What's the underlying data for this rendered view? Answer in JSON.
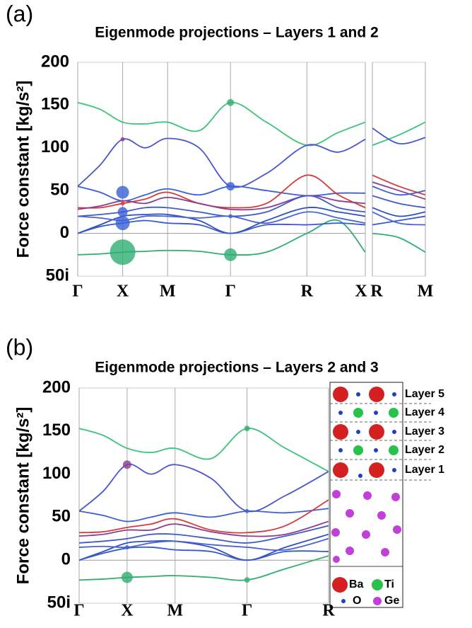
{
  "chart_data": [
    {
      "type": "line",
      "panel_label": "(a)",
      "title": "Eigenmode projections – Layers 1 and 2",
      "ylabel": "Force constant [kg/s²]",
      "x": [
        0,
        0.5,
        1,
        1.5,
        2,
        2.7,
        3.4,
        4.2,
        5.1,
        5.8,
        6.4
      ],
      "xlim": [
        0,
        6.4
      ],
      "ylim": [
        -50,
        200
      ],
      "xticks": [
        {
          "value": 0,
          "label": "Γ"
        },
        {
          "value": 1,
          "label": "X"
        },
        {
          "value": 2,
          "label": "M"
        },
        {
          "value": 3.4,
          "label": "Γ"
        },
        {
          "value": 5.1,
          "label": "R"
        },
        {
          "value": 6.4,
          "label": "X"
        }
      ],
      "yticks": [
        {
          "value": -50,
          "label": "50i"
        },
        0,
        50,
        100,
        150,
        200
      ],
      "series": [
        {
          "color": "#3cc47a",
          "values": [
            153,
            145,
            130,
            128,
            130,
            120,
            153,
            130,
            103,
            118,
            130
          ]
        },
        {
          "color": "#4b55d0",
          "values": [
            55,
            80,
            110,
            100,
            111,
            100,
            55,
            70,
            103,
            95,
            110
          ]
        },
        {
          "color": "#2fae72",
          "values": [
            -25,
            -24,
            -22,
            -21,
            -20,
            -21,
            -25,
            -22,
            0,
            15,
            -22
          ]
        },
        {
          "color": "#3a5fd6",
          "values": [
            55,
            48,
            38,
            45,
            52,
            45,
            55,
            50,
            44,
            47,
            47
          ]
        },
        {
          "color": "#d83a3a",
          "values": [
            30,
            30,
            35,
            40,
            48,
            35,
            30,
            35,
            68,
            45,
            30
          ]
        },
        {
          "color": "#8a3f8f",
          "values": [
            28,
            32,
            38,
            35,
            42,
            35,
            28,
            30,
            44,
            38,
            35
          ]
        },
        {
          "color": "#3f5bc9",
          "values": [
            20,
            22,
            25,
            30,
            30,
            25,
            20,
            25,
            44,
            30,
            25
          ]
        },
        {
          "color": "#2f4fc4",
          "values": [
            0,
            10,
            20,
            22,
            22,
            15,
            0,
            15,
            30,
            25,
            20
          ]
        },
        {
          "color": "#3659cc",
          "values": [
            0,
            8,
            12,
            15,
            12,
            10,
            0,
            10,
            10,
            12,
            10
          ]
        },
        {
          "color": "#4a64d2",
          "values": [
            20,
            18,
            15,
            20,
            20,
            18,
            20,
            12,
            25,
            18,
            12
          ]
        }
      ],
      "markers": [
        {
          "x": 1,
          "y": -22,
          "size": 18,
          "color": "#2fae72"
        },
        {
          "x": 1,
          "y": 12,
          "size": 10,
          "color": "#3a5fd6"
        },
        {
          "x": 1,
          "y": 25,
          "size": 7,
          "color": "#3a5fd6"
        },
        {
          "x": 1,
          "y": 48,
          "size": 9,
          "color": "#3a5fd6"
        },
        {
          "x": 1,
          "y": 35,
          "size": 3,
          "color": "#d83a3a"
        },
        {
          "x": 1,
          "y": 110,
          "size": 3,
          "color": "#8a3f8f"
        },
        {
          "x": 3.4,
          "y": 153,
          "size": 5,
          "color": "#2fae72"
        },
        {
          "x": 3.4,
          "y": 55,
          "size": 6,
          "color": "#3a5fd6"
        },
        {
          "x": 3.4,
          "y": 20,
          "size": 3,
          "color": "#3a5fd6"
        },
        {
          "x": 3.4,
          "y": -25,
          "size": 9,
          "color": "#2fae72"
        }
      ]
    },
    {
      "type": "line",
      "x": [
        0,
        0.55,
        1.1
      ],
      "xlim": [
        0,
        1.1
      ],
      "ylim": [
        -50,
        200
      ],
      "xticks": [
        {
          "value": 0,
          "label": "R"
        },
        {
          "value": 1.1,
          "label": "M"
        }
      ],
      "series": [
        {
          "color": "#3cc47a",
          "values": [
            103,
            115,
            130
          ]
        },
        {
          "color": "#4b55d0",
          "values": [
            123,
            105,
            112
          ]
        },
        {
          "color": "#d83a3a",
          "values": [
            68,
            55,
            45
          ]
        },
        {
          "color": "#8a3f8f",
          "values": [
            60,
            50,
            40
          ]
        },
        {
          "color": "#3a5fd6",
          "values": [
            55,
            45,
            50
          ]
        },
        {
          "color": "#3f5bc9",
          "values": [
            44,
            35,
            30
          ]
        },
        {
          "color": "#2f4fc4",
          "values": [
            30,
            20,
            25
          ]
        },
        {
          "color": "#3659cc",
          "values": [
            10,
            15,
            20
          ]
        },
        {
          "color": "#4a64d2",
          "values": [
            25,
            12,
            10
          ]
        },
        {
          "color": "#2fae72",
          "values": [
            0,
            -5,
            -22
          ]
        }
      ]
    },
    {
      "type": "line",
      "panel_label": "(b)",
      "title": "Eigenmode projections – Layers 2 and 3",
      "ylabel": "Force constant [kg/s²]",
      "x": [
        0,
        0.5,
        1,
        1.5,
        2,
        2.75,
        3.5,
        4.3,
        5.2
      ],
      "xlim": [
        0,
        5.2
      ],
      "ylim": [
        -50,
        200
      ],
      "xticks": [
        {
          "value": 0,
          "label": "Γ"
        },
        {
          "value": 1,
          "label": "X"
        },
        {
          "value": 2,
          "label": "M"
        },
        {
          "value": 3.5,
          "label": "Γ"
        },
        {
          "value": 5.2,
          "label": "R"
        }
      ],
      "yticks": [
        {
          "value": -50,
          "label": "50i"
        },
        0,
        50,
        100,
        150,
        200
      ],
      "series": [
        {
          "color": "#3cc47a",
          "values": [
            153,
            145,
            130,
            125,
            130,
            118,
            153,
            130,
            103
          ]
        },
        {
          "color": "#4b55d0",
          "values": [
            57,
            80,
            111,
            100,
            111,
            95,
            57,
            75,
            103
          ]
        },
        {
          "color": "#2fae72",
          "values": [
            -23,
            -22,
            -20,
            -19,
            -18,
            -20,
            -23,
            -10,
            5
          ]
        },
        {
          "color": "#3a5fd6",
          "values": [
            57,
            52,
            45,
            50,
            55,
            50,
            57,
            55,
            60
          ]
        },
        {
          "color": "#d83a3a",
          "values": [
            32,
            33,
            38,
            42,
            48,
            35,
            32,
            40,
            70
          ]
        },
        {
          "color": "#8a3f8f",
          "values": [
            28,
            30,
            35,
            35,
            42,
            33,
            28,
            30,
            45
          ]
        },
        {
          "color": "#3f5bc9",
          "values": [
            20,
            22,
            25,
            30,
            30,
            25,
            20,
            28,
            40
          ]
        },
        {
          "color": "#2f4fc4",
          "values": [
            0,
            10,
            20,
            22,
            22,
            15,
            0,
            15,
            30
          ]
        },
        {
          "color": "#3659cc",
          "values": [
            0,
            8,
            14,
            15,
            12,
            10,
            0,
            10,
            10
          ]
        },
        {
          "color": "#4a64d2",
          "values": [
            15,
            16,
            15,
            20,
            22,
            18,
            15,
            12,
            25
          ]
        }
      ],
      "markers": [
        {
          "x": 1,
          "y": -20,
          "size": 8,
          "color": "#2fae72"
        },
        {
          "x": 1,
          "y": 111,
          "size": 6,
          "color": "#8a3f8f"
        },
        {
          "x": 1,
          "y": 15,
          "size": 3,
          "color": "#3a5fd6"
        },
        {
          "x": 3.5,
          "y": 153,
          "size": 4,
          "color": "#2fae72"
        },
        {
          "x": 3.5,
          "y": 57,
          "size": 3,
          "color": "#3a5fd6"
        },
        {
          "x": 3.5,
          "y": -23,
          "size": 4,
          "color": "#2fae72"
        }
      ],
      "inset": {
        "layers": [
          "Layer 5",
          "Layer 4",
          "Layer 3",
          "Layer 2",
          "Layer 1"
        ],
        "species": [
          {
            "name": "Ba",
            "color": "#d42020"
          },
          {
            "name": "Ti",
            "color": "#27c24a"
          },
          {
            "name": "O",
            "color": "#1f3fc4"
          },
          {
            "name": "Ge",
            "color": "#c040d8"
          }
        ]
      }
    }
  ]
}
